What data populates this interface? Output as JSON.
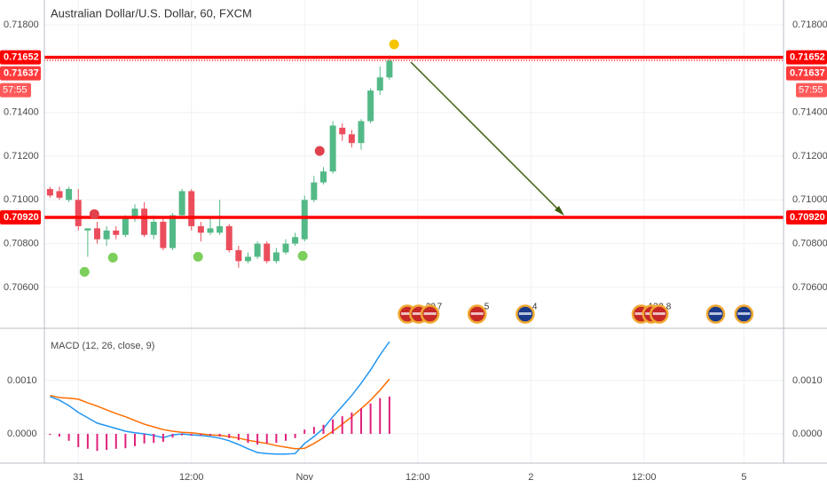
{
  "chart_data": [
    {
      "type": "candlestick",
      "title": "Australian Dollar/U.S. Dollar, 60, FXCM",
      "x": [
        -3,
        -2,
        -1,
        0,
        1,
        2,
        3,
        4,
        5,
        6,
        7,
        8,
        9,
        10,
        11,
        12,
        13,
        14,
        15,
        16,
        17,
        18,
        19,
        20,
        21,
        22,
        23,
        24,
        25,
        26,
        27,
        28,
        29,
        30,
        31,
        32,
        33
      ],
      "open": [
        0.7105,
        0.7104,
        0.71,
        0.71,
        0.7086,
        0.7087,
        0.7082,
        0.7086,
        0.7084,
        0.7092,
        0.7096,
        0.7084,
        0.709,
        0.7078,
        0.7093,
        0.7104,
        0.7088,
        0.7085,
        0.7085,
        0.7088,
        0.7077,
        0.7072,
        0.7074,
        0.708,
        0.7072,
        0.7076,
        0.708,
        0.7082,
        0.71,
        0.7108,
        0.7113,
        0.7133,
        0.713,
        0.7126,
        0.7136,
        0.715,
        0.7156
      ],
      "high": [
        0.7106,
        0.7106,
        0.7106,
        0.7105,
        0.7087,
        0.709,
        0.7088,
        0.7088,
        0.7093,
        0.7098,
        0.7099,
        0.7093,
        0.7092,
        0.7094,
        0.7105,
        0.7105,
        0.709,
        0.7092,
        0.71,
        0.7089,
        0.7079,
        0.7076,
        0.7081,
        0.7081,
        0.7078,
        0.7082,
        0.7085,
        0.7102,
        0.7111,
        0.7115,
        0.7136,
        0.7135,
        0.7132,
        0.7137,
        0.7151,
        0.7161,
        0.7166
      ],
      "low": [
        0.7101,
        0.71,
        0.7099,
        0.7086,
        0.7074,
        0.708,
        0.7079,
        0.7082,
        0.7083,
        0.709,
        0.7083,
        0.7082,
        0.7077,
        0.7077,
        0.7092,
        0.7086,
        0.7081,
        0.7084,
        0.7084,
        0.7076,
        0.7069,
        0.7071,
        0.7073,
        0.7071,
        0.7071,
        0.7075,
        0.7079,
        0.7081,
        0.7099,
        0.7107,
        0.7112,
        0.7127,
        0.7124,
        0.7123,
        0.7135,
        0.7148,
        0.7155
      ],
      "close": [
        0.7102,
        0.7101,
        0.7105,
        0.7088,
        0.7087,
        0.7082,
        0.7086,
        0.7084,
        0.7092,
        0.7096,
        0.7084,
        0.709,
        0.7078,
        0.7093,
        0.7104,
        0.7088,
        0.7085,
        0.7087,
        0.7088,
        0.7077,
        0.7072,
        0.7074,
        0.708,
        0.7072,
        0.7076,
        0.708,
        0.7083,
        0.71,
        0.7108,
        0.7113,
        0.7134,
        0.713,
        0.7126,
        0.7136,
        0.715,
        0.7156,
        0.71637
      ],
      "up_color": "#53b987",
      "down_color": "#eb4d5c",
      "xlim": [
        -3.6,
        74.8
      ],
      "ylim": [
        0.70413,
        0.71914
      ],
      "yticks": [
        {
          "value": 0.706,
          "label": "0.70600"
        },
        {
          "value": 0.708,
          "label": "0.70800"
        },
        {
          "value": 0.71,
          "label": "0.71000"
        },
        {
          "value": 0.712,
          "label": "0.71200"
        },
        {
          "value": 0.714,
          "label": "0.71400"
        },
        {
          "value": 0.718,
          "label": "0.71800"
        }
      ],
      "grid": true,
      "price_lines": [
        {
          "value": 0.71652,
          "label": "0.71652",
          "color": "#ff0000",
          "style": "solid"
        },
        {
          "value": 0.71637,
          "label": "0.71637",
          "color": "#ff3b3b",
          "style": "dotted"
        },
        {
          "value": 0.7092,
          "label": "0.70920",
          "color": "#ff0000",
          "style": "solid"
        }
      ],
      "countdown": "57:55",
      "signals": [
        {
          "color": "#f5c400",
          "x": [
            33.5
          ],
          "y": [
            0.71711
          ]
        },
        {
          "color": "#e0424b",
          "x": [
            1.7,
            25.6
          ],
          "y": [
            0.70935,
            0.71224
          ]
        },
        {
          "color": "#7ccf5a",
          "x": [
            0.66,
            3.67,
            12.7,
            23.8
          ],
          "y": [
            0.70671,
            0.70736,
            0.7074,
            0.70744
          ]
        }
      ],
      "events": [
        {
          "x": 34.9,
          "color": "#c62828"
        },
        {
          "x": 36.1,
          "color": "#c62828",
          "label": "29"
        },
        {
          "x": 37.3,
          "color": "#c62828",
          "label": "7"
        },
        {
          "x": 42.3,
          "color": "#c62828",
          "label": "5"
        },
        {
          "x": 47.4,
          "color": "#1a3a8a",
          "label": "4"
        },
        {
          "x": 59.7,
          "color": "#c62828",
          "label": "12"
        },
        {
          "x": 60.8,
          "color": "#c62828",
          "label": "2"
        },
        {
          "x": 61.6,
          "color": "#c62828",
          "label": "8"
        },
        {
          "x": 67.6,
          "color": "#1a3a8a"
        },
        {
          "x": 70.6,
          "color": "#1a3a8a"
        }
      ]
    },
    {
      "type": "line",
      "title": "MACD (12, 26, close, 9)",
      "x": [
        -3,
        -2,
        -1,
        0,
        1,
        2,
        3,
        4,
        5,
        6,
        7,
        8,
        9,
        10,
        11,
        12,
        13,
        14,
        15,
        16,
        17,
        18,
        19,
        20,
        21,
        22,
        23,
        24,
        25,
        26,
        27,
        28,
        29,
        30,
        31,
        32,
        33
      ],
      "series": [
        {
          "color": "#2196f3",
          "values": [
            0.0007,
            0.00063,
            0.00053,
            0.0004,
            0.0003,
            0.0002,
            0.00015,
            0.0001,
            5e-05,
            2e-05,
            0,
            -3e-05,
            -7e-05,
            -2e-05,
            0,
            -2e-05,
            -3e-05,
            -5e-05,
            -8e-05,
            -0.00013,
            -0.0002,
            -0.00028,
            -0.00035,
            -0.00037,
            -0.00038,
            -0.00038,
            -0.00037,
            -0.00018,
            -5e-05,
            0.0001,
            0.00032,
            0.00052,
            0.00072,
            0.00095,
            0.0012,
            0.00148,
            0.00173
          ]
        },
        {
          "color": "#ff6d00",
          "values": [
            0.00072,
            0.00068,
            0.00067,
            0.00065,
            0.00058,
            0.00052,
            0.00045,
            0.00038,
            0.00032,
            0.00025,
            0.00018,
            0.00013,
            8e-05,
            5e-05,
            3e-05,
            2e-05,
            0,
            -2e-05,
            -3e-05,
            -5e-05,
            -8e-05,
            -0.00012,
            -0.00015,
            -0.00018,
            -0.00022,
            -0.00025,
            -0.00028,
            -0.00027,
            -0.00018,
            -7e-05,
            5e-05,
            0.00018,
            0.00032,
            0.00047,
            0.00063,
            0.00082,
            0.00103
          ]
        },
        {
          "type": "bar",
          "color": "#e0217a",
          "values": [
            -2e-05,
            -5e-05,
            -0.00013,
            -0.00025,
            -0.00028,
            -0.00032,
            -0.0003,
            -0.00028,
            -0.00027,
            -0.00023,
            -0.00018,
            -0.00017,
            -0.00015,
            -7e-05,
            -3e-05,
            -3e-05,
            -3e-05,
            -3e-05,
            -5e-05,
            -8e-05,
            -0.00012,
            -0.00017,
            -0.0002,
            -0.00018,
            -0.00017,
            -0.00013,
            -8e-05,
            8e-05,
            0.00013,
            0.00017,
            0.00027,
            0.00033,
            0.0004,
            0.00048,
            0.00057,
            0.00067,
            0.0007
          ]
        }
      ],
      "xlim": [
        -3.6,
        74.8
      ],
      "ylim": [
        -0.00055,
        0.00198
      ],
      "yticks": [
        {
          "value": 0.001,
          "label": "0.0010"
        },
        {
          "value": 0,
          "label": "0.0000"
        }
      ],
      "xticks": [
        {
          "value": 0,
          "label": "31"
        },
        {
          "value": 12,
          "label": "12:00"
        },
        {
          "value": 24,
          "label": "Nov"
        },
        {
          "value": 36,
          "label": "12:00"
        },
        {
          "value": 48,
          "label": "2"
        },
        {
          "value": 60,
          "label": "12:00"
        },
        {
          "value": 70.6,
          "label": "5"
        }
      ],
      "grid": true
    }
  ]
}
